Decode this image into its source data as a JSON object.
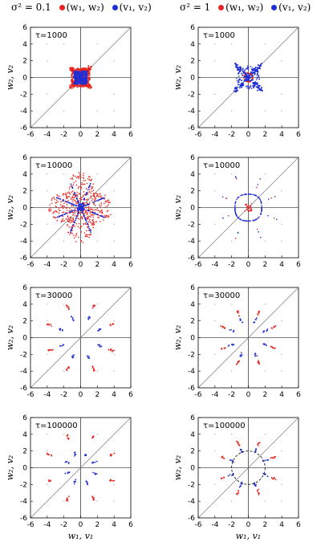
{
  "colors": {
    "w": "#e8251f",
    "v": "#1f2fd6",
    "axis": "#000000",
    "diag": "#7a7a7a",
    "grid_pt": "#b0b0b0"
  },
  "header": {
    "left": {
      "sigma_label": "σ² = 0.1",
      "w_label": "(w₁, w₂)",
      "v_label": "(v₁, v₂)"
    },
    "right": {
      "sigma_label": "σ² = 1",
      "w_label": "(w₁, w₂)",
      "v_label": "(v₁, v₂)"
    }
  },
  "axes": {
    "xlim": [
      -6,
      6
    ],
    "ylim": [
      -6,
      6
    ],
    "ticks": [
      -6,
      -4,
      -2,
      0,
      2,
      4,
      6
    ],
    "tick_labels": [
      "-6",
      "-4",
      "-2",
      "0",
      "2",
      "4",
      "6"
    ],
    "xlabel": "w₁, v₁",
    "ylabel": "w₂, v₂"
  },
  "chart_data": [
    {
      "type": "scatter",
      "column": "σ² = 0.1",
      "tau_label": "τ=1000",
      "pattern": "square",
      "w_extent": 1.1,
      "v_extent": 0.8
    },
    {
      "type": "scatter",
      "column": "σ² = 1",
      "tau_label": "τ=1000",
      "pattern": "ring",
      "w_extent": 0.5,
      "v_extent": 2.2
    },
    {
      "type": "scatter",
      "column": "σ² = 0.1",
      "tau_label": "τ=10000",
      "pattern": "dense-star",
      "w_extent": 3.2,
      "v_extent": 3.2
    },
    {
      "type": "scatter",
      "column": "σ² = 1",
      "tau_label": "τ=10000",
      "pattern": "diamond",
      "w_extent": 0.5,
      "v_extent": 1.6
    },
    {
      "type": "scatter",
      "column": "σ² = 0.1",
      "tau_label": "τ=30000",
      "pattern": "arms",
      "w_extent": 4.0,
      "v_extent": 2.5
    },
    {
      "type": "scatter",
      "column": "σ² = 1",
      "tau_label": "τ=30000",
      "pattern": "arms",
      "w_extent": 3.2,
      "v_extent": 2.2
    },
    {
      "type": "scatter",
      "column": "σ² = 0.1",
      "tau_label": "τ=100000",
      "pattern": "arms",
      "w_extent": 4.0,
      "v_extent": 1.8
    },
    {
      "type": "scatter",
      "column": "σ² = 1",
      "tau_label": "τ=100000",
      "pattern": "arms-circle",
      "w_extent": 3.2,
      "v_extent": 2.2,
      "circle_radius": 2.0
    }
  ]
}
